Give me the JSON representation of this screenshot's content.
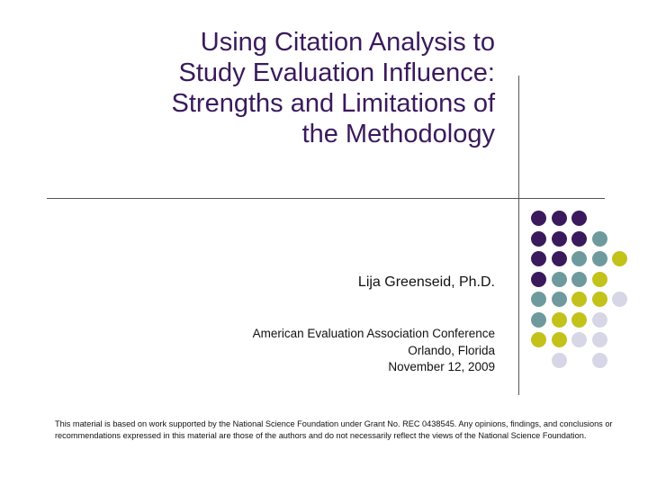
{
  "slide": {
    "title_lines": [
      "Using Citation Analysis to",
      "Study Evaluation Influence:",
      "Strengths and Limitations of",
      "the Methodology"
    ],
    "author": "Lija Greenseid, Ph.D.",
    "conference_lines": [
      "American Evaluation Association Conference",
      "Orlando, Florida",
      "November 12, 2009"
    ],
    "footer": "This material is based on work supported by the National Science Foundation under Grant No. REC 0438545. Any opinions, findings, and conclusions or recommendations expressed in this material are those of the authors and do not necessarily reflect the views of the National Science Foundation."
  },
  "colors": {
    "title": "#3a1a5c",
    "dark_purple": "#3a1a5c",
    "teal": "#6f9a9d",
    "olive": "#c3c21b",
    "lavender": "#d6d6e6",
    "rule": "#555555"
  },
  "decoration": {
    "dot_rows": [
      [
        "dark_purple",
        "dark_purple",
        "dark_purple",
        "",
        ""
      ],
      [
        "dark_purple",
        "dark_purple",
        "dark_purple",
        "teal",
        ""
      ],
      [
        "dark_purple",
        "dark_purple",
        "teal",
        "teal",
        "olive"
      ],
      [
        "dark_purple",
        "teal",
        "teal",
        "olive",
        ""
      ],
      [
        "teal",
        "teal",
        "olive",
        "olive",
        "lavender"
      ],
      [
        "teal",
        "olive",
        "olive",
        "lavender",
        ""
      ],
      [
        "olive",
        "olive",
        "lavender",
        "lavender",
        ""
      ],
      [
        "",
        "lavender",
        "",
        "lavender",
        ""
      ]
    ]
  }
}
